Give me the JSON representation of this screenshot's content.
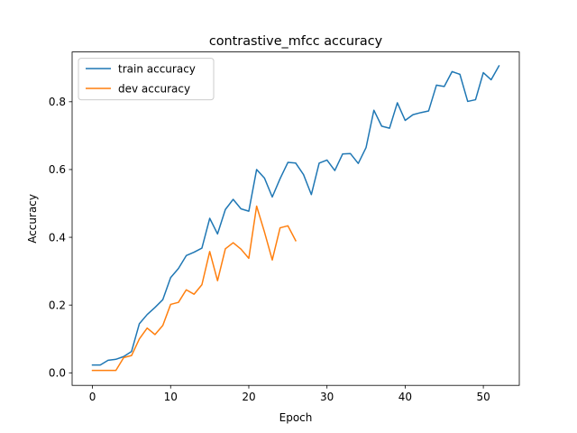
{
  "chart_data": {
    "type": "line",
    "title": "contrastive_mfcc accuracy",
    "xlabel": "Epoch",
    "ylabel": "Accuracy",
    "xlim": [
      -2.6,
      54.6
    ],
    "ylim": [
      -0.037,
      0.947
    ],
    "xticks": [
      0,
      10,
      20,
      30,
      40,
      50
    ],
    "yticks": [
      0.0,
      0.2,
      0.4,
      0.6,
      0.8
    ],
    "xtick_labels": [
      "0",
      "10",
      "20",
      "30",
      "40",
      "50"
    ],
    "ytick_labels": [
      "0.0",
      "0.2",
      "0.4",
      "0.6",
      "0.8"
    ],
    "grid": false,
    "legend_position": "upper-left",
    "series": [
      {
        "name": "train accuracy",
        "color": "#1f77b4",
        "x": [
          0,
          1,
          2,
          3,
          4,
          5,
          6,
          7,
          8,
          9,
          10,
          11,
          12,
          13,
          14,
          15,
          16,
          17,
          18,
          19,
          20,
          21,
          22,
          23,
          24,
          25,
          26,
          27,
          28,
          29,
          30,
          31,
          32,
          33,
          34,
          35,
          36,
          37,
          38,
          39,
          40,
          41,
          42,
          43,
          44,
          45,
          46,
          47,
          48,
          49,
          50,
          51,
          52
        ],
        "y": [
          0.023,
          0.023,
          0.037,
          0.04,
          0.048,
          0.063,
          0.145,
          0.172,
          0.193,
          0.216,
          0.281,
          0.308,
          0.346,
          0.356,
          0.368,
          0.456,
          0.41,
          0.482,
          0.512,
          0.484,
          0.477,
          0.6,
          0.575,
          0.519,
          0.573,
          0.621,
          0.619,
          0.585,
          0.526,
          0.619,
          0.628,
          0.597,
          0.646,
          0.647,
          0.618,
          0.665,
          0.775,
          0.728,
          0.722,
          0.797,
          0.745,
          0.762,
          0.768,
          0.773,
          0.849,
          0.845,
          0.889,
          0.881,
          0.801,
          0.806,
          0.886,
          0.865,
          0.906
        ]
      },
      {
        "name": "dev accuracy",
        "color": "#ff7f0e",
        "x": [
          0,
          1,
          2,
          3,
          4,
          5,
          6,
          7,
          8,
          9,
          10,
          11,
          12,
          13,
          14,
          15,
          16,
          17,
          18,
          19,
          20,
          21,
          22,
          23,
          24,
          25,
          26
        ],
        "y": [
          0.007,
          0.007,
          0.007,
          0.007,
          0.045,
          0.051,
          0.1,
          0.132,
          0.113,
          0.14,
          0.202,
          0.208,
          0.245,
          0.232,
          0.26,
          0.358,
          0.272,
          0.366,
          0.384,
          0.365,
          0.338,
          0.492,
          0.416,
          0.333,
          0.428,
          0.434,
          0.39
        ]
      }
    ]
  }
}
